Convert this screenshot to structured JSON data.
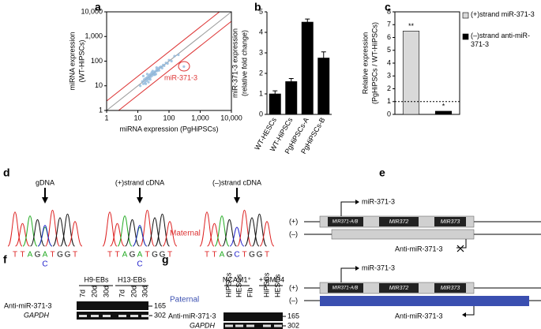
{
  "panel_letters": [
    "a",
    "b",
    "c",
    "d",
    "e",
    "f",
    "g"
  ],
  "chart_data": [
    {
      "type": "scatter",
      "log_scale": true,
      "color": "#8fb8dc",
      "x_label": "miRNA expression (PgHiPSCs)",
      "y_label": [
        "miRNA expression",
        "(WT-HiPSCs)"
      ],
      "annotation": "miR-371-3",
      "x": [
        12,
        14,
        15,
        16,
        17,
        18,
        19,
        20,
        21,
        22,
        23,
        24,
        25,
        26,
        28,
        30,
        32,
        34,
        36,
        38,
        40,
        42,
        45,
        48,
        50,
        55,
        60,
        65,
        70,
        80,
        90,
        100,
        120,
        150,
        200,
        15,
        18,
        20,
        25,
        30,
        35,
        40,
        22,
        28,
        300
      ],
      "y": [
        10,
        15,
        12,
        18,
        14,
        20,
        16,
        22,
        18,
        25,
        20,
        28,
        22,
        30,
        25,
        32,
        28,
        35,
        38,
        30,
        45,
        40,
        50,
        42,
        55,
        60,
        52,
        70,
        65,
        85,
        80,
        110,
        100,
        160,
        180,
        25,
        12,
        30,
        18,
        40,
        28,
        55,
        14,
        35,
        60
      ],
      "xlim": [
        1,
        10000
      ],
      "ylim": [
        1,
        10000
      ],
      "xticks": [
        1,
        10,
        100,
        {
          "value": 1000,
          "label": "1,000"
        },
        {
          "value": 10000,
          "label": "10,000"
        }
      ],
      "yticks": [
        1,
        10,
        100,
        {
          "value": 1000,
          "label": "1,000"
        },
        {
          "value": 10000,
          "label": "10,000"
        }
      ]
    },
    {
      "type": "bar",
      "color": "#000000",
      "y_label": [
        "miR-371-3 expression",
        "(relative fold change)"
      ],
      "categories": [
        "WT-HESCs",
        "WT-HiPSCs",
        "PgHiPSCs-A",
        "PgHiPSCs-B"
      ],
      "values": [
        1,
        1.6,
        4.5,
        2.75
      ],
      "errors": [
        0.15,
        0.15,
        0.15,
        0.3
      ],
      "ylim": [
        0,
        5
      ],
      "yticks": [
        0,
        1,
        2,
        3,
        4,
        5
      ]
    },
    {
      "type": "bar",
      "y_label": [
        "Relative expression",
        "(PgHiPSCs / WT-HiPSCs)"
      ],
      "categories": [
        null,
        null
      ],
      "series": [
        {
          "name": "(+)strand miR-371-3",
          "color": "#d9d9d9",
          "values": [
            6.5,
            null
          ]
        },
        {
          "name": "(–)strand anti-miR-371-3",
          "color": "#000000",
          "values": [
            null,
            0.25
          ]
        }
      ],
      "annotations": [
        "**",
        "*"
      ],
      "reference_line": 1,
      "ylim": [
        0,
        8
      ],
      "yticks": [
        0,
        1,
        2,
        3,
        4,
        5,
        6,
        7,
        8
      ]
    }
  ],
  "panel_d": {
    "traces": [
      {
        "title": "gDNA",
        "sequence": [
          "T",
          "T",
          "A",
          "G",
          "A",
          "T",
          "G",
          "G",
          "T"
        ],
        "alt": "C"
      },
      {
        "title": "(+)strand cDNA",
        "sequence": [
          "T",
          "T",
          "A",
          "G",
          "A",
          "T",
          "G",
          "G",
          "T"
        ],
        "alt": "C"
      },
      {
        "title": "(–)strand cDNA",
        "sequence": [
          "T",
          "T",
          "A",
          "G",
          "C",
          "T",
          "G",
          "G",
          "T"
        ]
      }
    ]
  },
  "panel_e": {
    "maternal": "Maternal",
    "paternal": "Paternal",
    "plus": "(+)",
    "minus": "(–)",
    "mir": "miR-371-3",
    "genes": [
      "MIR371-A/B",
      "MIR372",
      "MIR373"
    ],
    "anti": "Anti-miR-371-3"
  },
  "panel_f": {
    "groups": [
      "H9-EBs",
      "H13-EBs"
    ],
    "lanes": [
      "7d",
      "20d",
      "30d",
      "7d",
      "20d",
      "30d"
    ],
    "rows": [
      "Anti-miR-371-3",
      "GAPDH"
    ],
    "sizes": [
      165,
      302
    ]
  },
  "panel_g": {
    "groups": [
      "NCAM1⁺",
      "+ BMP4"
    ],
    "lanes": [
      "HiPSCs",
      "HESCs",
      "Fib",
      "HiPSCs",
      "HESCs"
    ],
    "rows": [
      "Anti-miR-371-3",
      "GAPDH"
    ],
    "sizes": [
      165,
      302
    ]
  }
}
